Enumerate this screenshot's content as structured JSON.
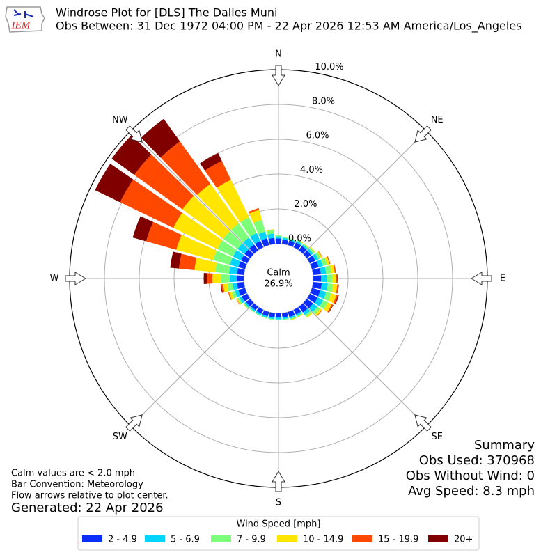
{
  "chart_data": {
    "type": "windrose",
    "title": "Windrose Plot for [DLS] The Dalles Muni",
    "subtitle": "Obs Between: 31 Dec 1972 04:00 PM - 22 Apr 2026 12:53 AM America/Los_Angeles",
    "logo_text": "IEM",
    "x": [
      10,
      20,
      30,
      40,
      50,
      60,
      70,
      80,
      90,
      100,
      110,
      120,
      130,
      140,
      150,
      160,
      170,
      180,
      190,
      200,
      210,
      220,
      230,
      240,
      250,
      260,
      270,
      280,
      290,
      300,
      310,
      320,
      330,
      340,
      350,
      360
    ],
    "direction_labels": [
      "N",
      "NE",
      "E",
      "SE",
      "S",
      "SW",
      "W",
      "NW"
    ],
    "ylim": [
      0,
      10
    ],
    "yticks": [
      {
        "value": 0,
        "label": "0.0%"
      },
      {
        "value": 2,
        "label": "2.0%"
      },
      {
        "value": 4,
        "label": "4.0%"
      },
      {
        "value": 6,
        "label": "6.0%"
      },
      {
        "value": 8,
        "label": "8.0%"
      },
      {
        "value": 10,
        "label": "10.0%"
      }
    ],
    "grid": true,
    "calm_label": "Calm",
    "calm_value": 26.9,
    "calm_value_label": "26.9%",
    "legend_title": "Wind Speed [mph]",
    "legend_position": "lower center",
    "series": [
      {
        "name": "2 - 4.9",
        "color": "#0a2eff",
        "values": [
          0.25,
          0.25,
          0.3,
          0.3,
          0.3,
          0.35,
          0.4,
          0.45,
          0.45,
          0.5,
          0.5,
          0.5,
          0.45,
          0.4,
          0.3,
          0.3,
          0.25,
          0.25,
          0.25,
          0.25,
          0.25,
          0.25,
          0.3,
          0.35,
          0.4,
          0.4,
          0.4,
          0.4,
          0.4,
          0.4,
          0.4,
          0.4,
          0.4,
          0.4,
          0.35,
          0.3
        ]
      },
      {
        "name": "5 - 6.9",
        "color": "#00d4ff",
        "values": [
          0.1,
          0.1,
          0.1,
          0.1,
          0.15,
          0.2,
          0.25,
          0.3,
          0.35,
          0.35,
          0.35,
          0.35,
          0.3,
          0.2,
          0.1,
          0.1,
          0.1,
          0.1,
          0.1,
          0.1,
          0.1,
          0.1,
          0.1,
          0.15,
          0.2,
          0.25,
          0.4,
          0.45,
          0.5,
          0.5,
          0.5,
          0.5,
          0.5,
          0.4,
          0.25,
          0.12
        ]
      },
      {
        "name": "7 - 9.9",
        "color": "#7dff7a",
        "values": [
          0.05,
          0.05,
          0.07,
          0.07,
          0.1,
          0.15,
          0.25,
          0.3,
          0.3,
          0.3,
          0.3,
          0.3,
          0.2,
          0.12,
          0.07,
          0.07,
          0.05,
          0.05,
          0.05,
          0.05,
          0.05,
          0.05,
          0.07,
          0.12,
          0.2,
          0.3,
          0.5,
          0.8,
          1.0,
          1.0,
          1.0,
          1.0,
          1.0,
          0.7,
          0.2,
          0.06
        ]
      },
      {
        "name": "10 - 14.9",
        "color": "#ffe500",
        "values": [
          0,
          0,
          0.03,
          0.03,
          0.05,
          0.08,
          0.15,
          0.2,
          0.22,
          0.25,
          0.3,
          0.25,
          0.12,
          0.08,
          0.03,
          0.03,
          0,
          0,
          0,
          0,
          0,
          0,
          0.03,
          0.06,
          0.15,
          0.25,
          0.5,
          1.2,
          2.2,
          2.8,
          2.9,
          2.8,
          2.4,
          0.6,
          0.05,
          0.02
        ]
      },
      {
        "name": "15 - 19.9",
        "color": "#ff4800",
        "values": [
          0,
          0,
          0,
          0,
          0,
          0.02,
          0.05,
          0.05,
          0.06,
          0.07,
          0.1,
          0.07,
          0.03,
          0,
          0,
          0,
          0,
          0,
          0,
          0,
          0,
          0,
          0,
          0.02,
          0.05,
          0.1,
          0.3,
          0.9,
          1.8,
          3.4,
          3.4,
          3.0,
          1.2,
          0.1,
          0,
          0
        ]
      },
      {
        "name": "20+",
        "color": "#800000",
        "values": [
          0,
          0,
          0,
          0,
          0,
          0,
          0,
          0.01,
          0.02,
          0.02,
          0.05,
          0.03,
          0,
          0,
          0,
          0,
          0,
          0,
          0,
          0,
          0,
          0,
          0,
          0,
          0,
          0.05,
          0.2,
          0.5,
          0.8,
          1.6,
          1.6,
          1.6,
          0.5,
          0,
          0,
          0
        ]
      }
    ],
    "summary": [
      "Summary",
      "Obs Used: 370968",
      "Obs Without Wind: 0",
      "Avg Speed: 8.3 mph"
    ],
    "notes": [
      "Calm values are < 2.0 mph",
      "Bar Convention: Meteorology",
      "Flow arrows relative to plot center."
    ],
    "generated": "Generated: 22 Apr 2026"
  }
}
